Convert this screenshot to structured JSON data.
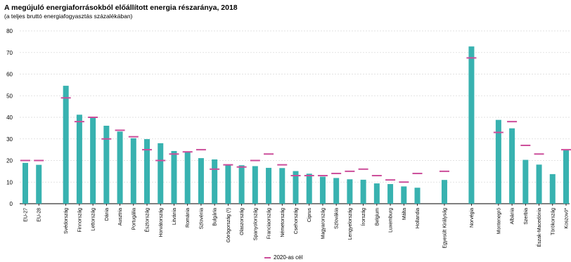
{
  "title": "A megújuló energiaforrásokból előállított energia részaránya, 2018",
  "subtitle": "(a teljes bruttó energiafogyasztás százalékában)",
  "legend": {
    "target_label": "2020-as cél"
  },
  "colors": {
    "bar": "#38b2b0",
    "target": "#cc4e9a",
    "grid": "#d9d9d9",
    "axis": "#000000"
  },
  "chart_data": {
    "type": "bar",
    "title": "A megújuló energiaforrásokból előállított energia részaránya, 2018",
    "subtitle": "(a teljes bruttó energiafogyasztás százalékában)",
    "xlabel": "",
    "ylabel": "",
    "ylim": [
      0,
      80
    ],
    "yticks": [
      0,
      10,
      20,
      30,
      40,
      50,
      60,
      70,
      80
    ],
    "grid": true,
    "legend_position": "bottom",
    "categories": [
      "EU-27",
      "EU-28",
      "Svédország",
      "Finnország",
      "Lettország",
      "Dánia",
      "Ausztria",
      "Portugália",
      "Észtország",
      "Horvátország",
      "Litvánia",
      "Románia",
      "Szlovénia",
      "Bulgária",
      "Görögország (¹)",
      "Olaszország",
      "Spanyolország",
      "Franciaország",
      "Németország",
      "Csehország",
      "Ciprus",
      "Magyarország",
      "Szlovákia",
      "Lengyelország",
      "Írország",
      "Belgium",
      "Luxemburg",
      "Málta",
      "Hollandia",
      "Egyesült Királyság",
      "Norvégia",
      "Montenegró",
      "Albánia",
      "Szerbia",
      "Észak-Macedónia",
      "Törökország",
      "Koszovó*"
    ],
    "groups": [
      2,
      27,
      1,
      1,
      6
    ],
    "series": [
      {
        "name": "",
        "values": [
          18.9,
          18.0,
          54.6,
          41.2,
          40.3,
          36.1,
          33.4,
          30.3,
          29.9,
          28.0,
          24.4,
          23.9,
          21.1,
          20.5,
          18.0,
          17.8,
          17.4,
          16.6,
          16.5,
          15.1,
          13.9,
          12.5,
          11.9,
          11.3,
          11.1,
          9.4,
          9.1,
          8.0,
          7.4,
          11.0,
          72.8,
          38.8,
          34.9,
          20.3,
          18.1,
          13.7,
          24.9
        ]
      },
      {
        "name": "2020-as cél",
        "values": [
          20,
          20,
          49,
          38,
          40,
          30,
          34,
          31,
          25,
          20,
          23,
          24,
          25,
          16,
          18,
          17,
          20,
          23,
          18,
          13,
          13,
          13,
          14,
          15,
          16,
          13,
          11,
          10,
          14,
          15,
          67.5,
          33,
          38,
          27,
          23,
          null,
          25
        ]
      }
    ]
  }
}
